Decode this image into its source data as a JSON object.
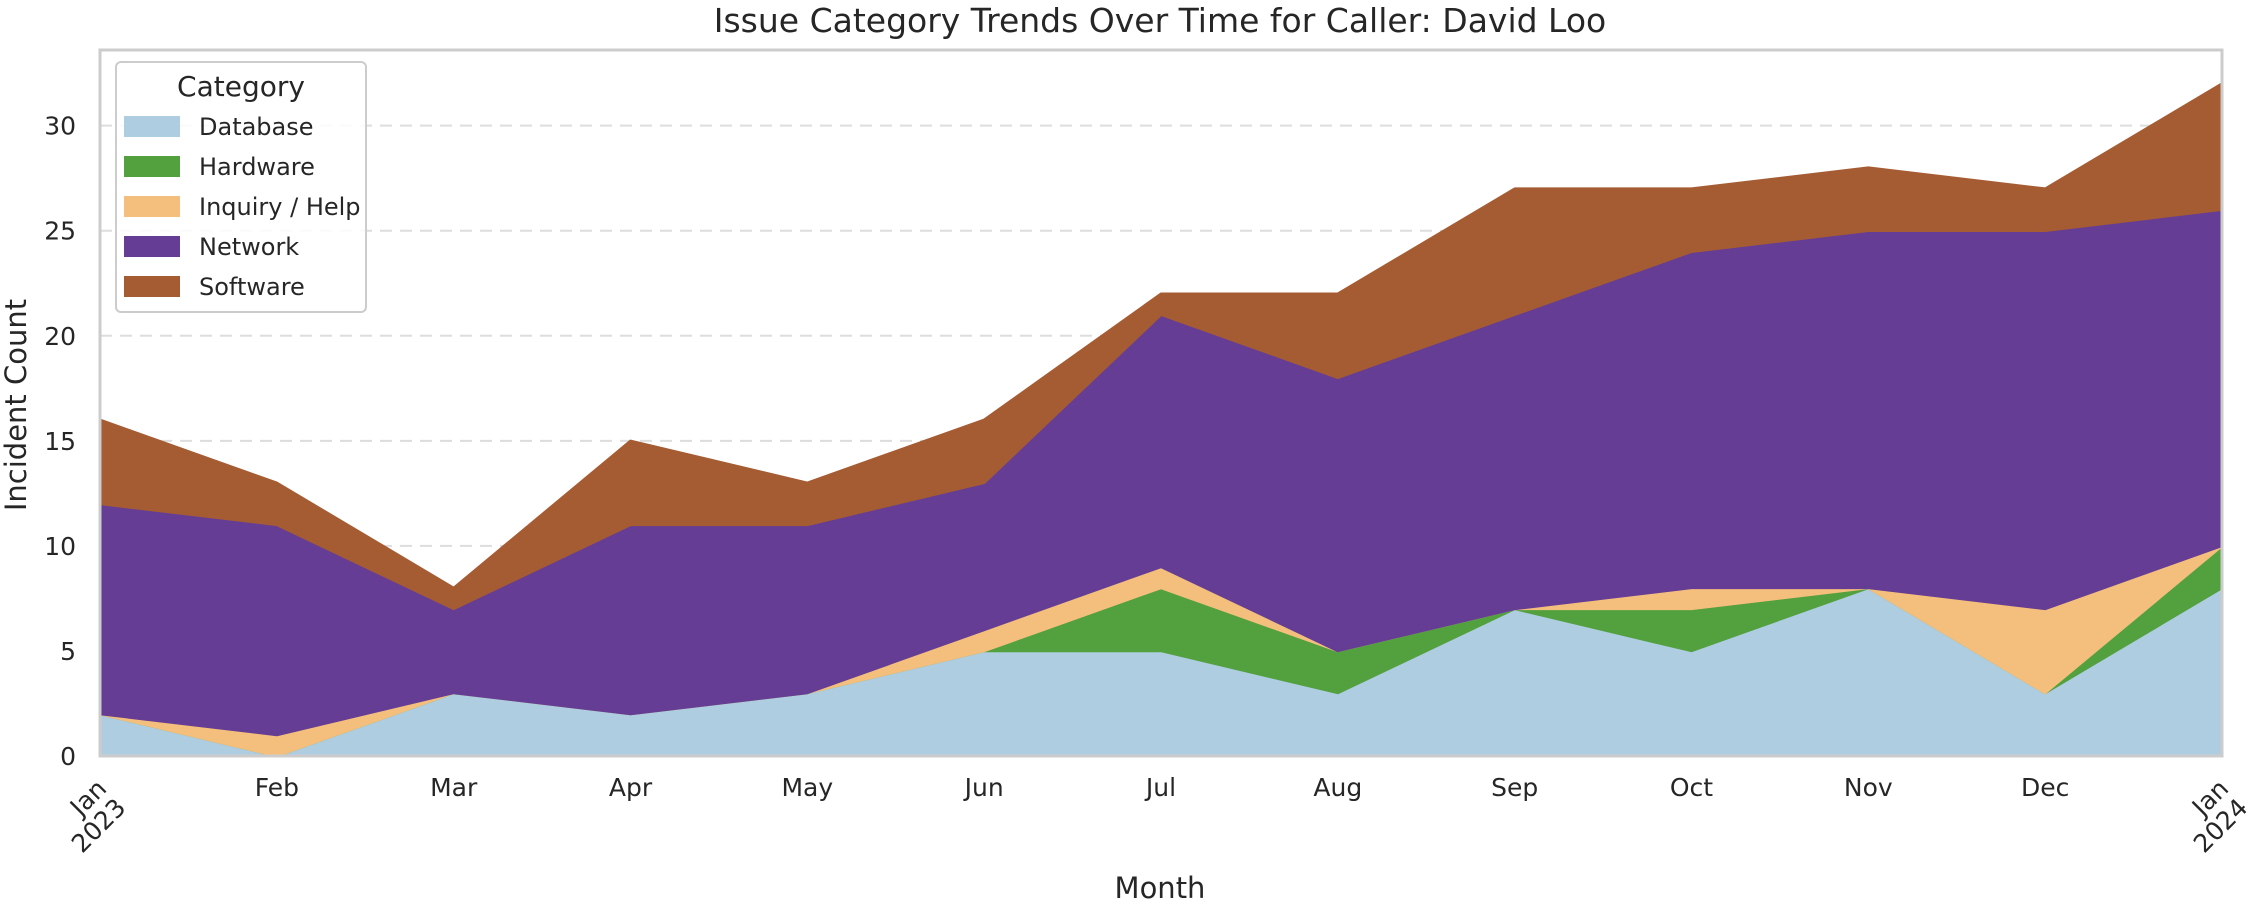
{
  "chart_data": {
    "type": "area",
    "stacked": true,
    "title": "Issue Category Trends Over Time for Caller: David Loo",
    "xlabel": "Month",
    "ylabel": "Incident Count",
    "x": [
      "Jan\n2023",
      "Feb",
      "Mar",
      "Apr",
      "May",
      "Jun",
      "Jul",
      "Aug",
      "Sep",
      "Oct",
      "Nov",
      "Dec",
      "Jan\n2024"
    ],
    "x_values": [
      "2023-01",
      "2023-02",
      "2023-03",
      "2023-04",
      "2023-05",
      "2023-06",
      "2023-07",
      "2023-08",
      "2023-09",
      "2023-10",
      "2023-11",
      "2023-12",
      "2024-01"
    ],
    "ylim": [
      0,
      33.6
    ],
    "yticks": [
      0,
      5,
      10,
      15,
      20,
      25,
      30
    ],
    "grid": "horizontal dashed",
    "legend": {
      "title": "Category",
      "position": "top-left"
    },
    "series": [
      {
        "name": "Database",
        "color": "#aecde1",
        "values": [
          2,
          0,
          3,
          2,
          3,
          5,
          5,
          3,
          7,
          5,
          8,
          3,
          8
        ]
      },
      {
        "name": "Hardware",
        "color": "#53a03f",
        "values": [
          0,
          0,
          0,
          0,
          0,
          0,
          3,
          2,
          0,
          2,
          0,
          0,
          2
        ]
      },
      {
        "name": "Inquiry / Help",
        "color": "#f4bf7c",
        "values": [
          0,
          1,
          0,
          0,
          0,
          1,
          1,
          0,
          0,
          1,
          0,
          4,
          0
        ]
      },
      {
        "name": "Network",
        "color": "#653d94",
        "values": [
          10,
          10,
          4,
          9,
          8,
          7,
          12,
          13,
          14,
          16,
          17,
          18,
          16
        ]
      },
      {
        "name": "Software",
        "color": "#a55c33",
        "values": [
          4,
          2,
          1,
          4,
          2,
          3,
          1,
          4,
          6,
          3,
          3,
          2,
          6
        ]
      }
    ]
  }
}
